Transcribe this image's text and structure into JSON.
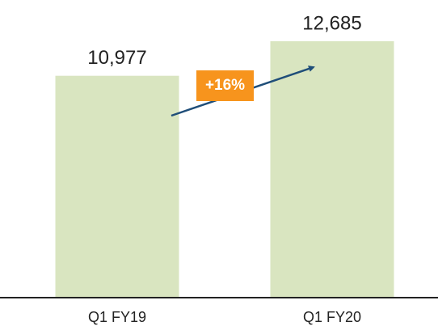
{
  "chart_data": {
    "type": "bar",
    "categories": [
      "Q1 FY19",
      "Q1 FY20"
    ],
    "values": [
      10977,
      12685
    ],
    "value_labels": [
      "10,977",
      "12,685"
    ],
    "color": "#d9e5c0",
    "annotation": "+16%"
  }
}
